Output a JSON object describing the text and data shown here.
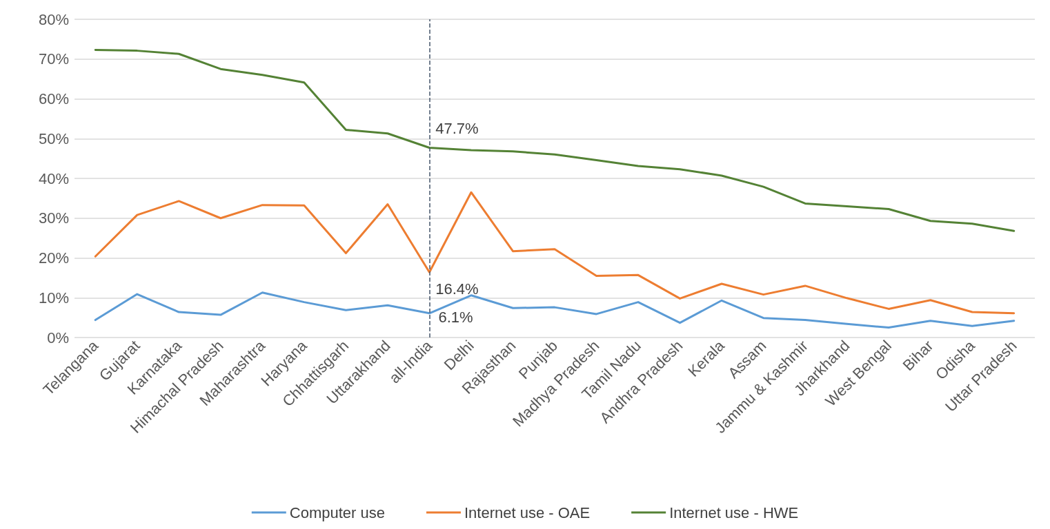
{
  "chart_data": {
    "type": "line",
    "categories": [
      "Telangana",
      "Gujarat",
      "Karnataka",
      "Himachal Pradesh",
      "Maharashtra",
      "Haryana",
      "Chhattisgarh",
      "Uttarakhand",
      "all-India",
      "Delhi",
      "Rajasthan",
      "Punjab",
      "Madhya Pradesh",
      "Tamil Nadu",
      "Andhra Pradesh",
      "Kerala",
      "Assam",
      "Jammu & Kashmir",
      "Jharkhand",
      "West Bengal",
      "Bihar",
      "Odisha",
      "Uttar Pradesh"
    ],
    "series": [
      {
        "name": "Computer use",
        "color": "#5b9bd5",
        "values": [
          4.4,
          10.9,
          6.4,
          5.7,
          11.3,
          8.9,
          6.9,
          8.1,
          6.1,
          10.6,
          7.4,
          7.6,
          5.9,
          8.9,
          3.7,
          9.3,
          4.9,
          4.4,
          3.4,
          2.5,
          4.2,
          2.9,
          4.2
        ],
        "value_labels": [
          null,
          null,
          null,
          null,
          null,
          null,
          null,
          null,
          "6.1%",
          null,
          null,
          null,
          null,
          null,
          null,
          null,
          null,
          null,
          null,
          null,
          null,
          null,
          null
        ]
      },
      {
        "name": "Internet use - OAE",
        "color": "#ed7d31",
        "values": [
          20.4,
          30.8,
          34.3,
          30,
          33.3,
          33.2,
          21.2,
          33.5,
          16.4,
          36.5,
          21.7,
          22.2,
          15.5,
          15.7,
          9.8,
          13.5,
          10.8,
          13,
          9.9,
          7.2,
          9.4,
          6.4,
          6.1
        ],
        "value_labels": [
          null,
          null,
          null,
          null,
          null,
          null,
          null,
          null,
          "16.4%",
          null,
          null,
          null,
          null,
          null,
          null,
          null,
          null,
          null,
          null,
          null,
          null,
          null,
          null
        ]
      },
      {
        "name": "Internet use - HWE",
        "color": "#548235",
        "values": [
          72.3,
          72.1,
          71.3,
          67.5,
          66,
          64.1,
          52.2,
          51.3,
          47.7,
          47.1,
          46.8,
          46,
          44.6,
          43.1,
          42.3,
          40.7,
          37.9,
          33.7,
          33,
          32.3,
          29.3,
          28.6,
          26.8
        ],
        "value_labels": [
          null,
          null,
          null,
          null,
          null,
          null,
          null,
          null,
          "47.7%",
          null,
          null,
          null,
          null,
          null,
          null,
          null,
          null,
          null,
          null,
          null,
          null,
          null,
          null
        ]
      }
    ],
    "ylim": [
      0,
      80
    ],
    "yticks": [
      {
        "value": 0,
        "label": "0%"
      },
      {
        "value": 10,
        "label": "10%"
      },
      {
        "value": 20,
        "label": "20%"
      },
      {
        "value": 30,
        "label": "30%"
      },
      {
        "value": 40,
        "label": "40%"
      },
      {
        "value": 50,
        "label": "50%"
      },
      {
        "value": 60,
        "label": "60%"
      },
      {
        "value": 70,
        "label": "70%"
      },
      {
        "value": 80,
        "label": "80%"
      }
    ],
    "grid": "y",
    "legend": "bottom",
    "marker": "none",
    "line_style": "solid",
    "ref_lines": [
      {
        "axis": "x",
        "value": "all-India",
        "color": "#44546a",
        "line_style": "dashed"
      }
    ]
  }
}
